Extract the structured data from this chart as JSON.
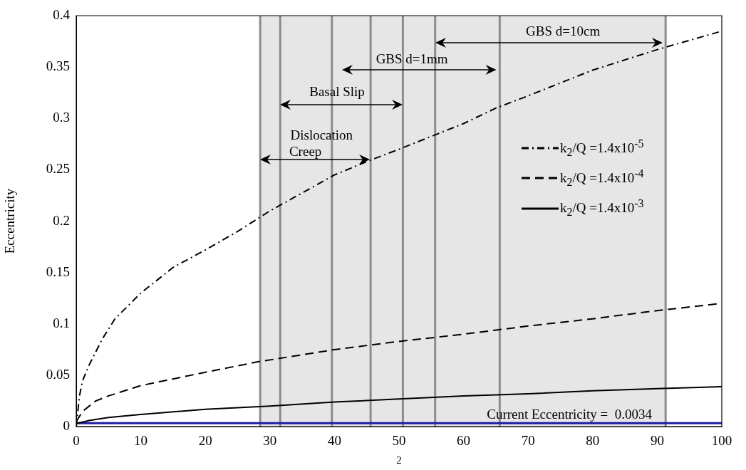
{
  "chart_data": {
    "type": "line",
    "xlabel": "2",
    "ylabel": "Eccentricity",
    "xlim": [
      0,
      100
    ],
    "xticks": [
      0,
      10,
      20,
      30,
      40,
      50,
      60,
      70,
      80,
      90,
      100
    ],
    "ylim": [
      0,
      0.4
    ],
    "yticks": [
      0,
      0.05,
      0.1,
      0.15,
      0.2,
      0.25,
      0.3,
      0.35,
      0.4
    ],
    "grid": false,
    "legend": "right",
    "marker": "none",
    "series": [
      {
        "name": "k$_{2}$/Q =1.4x10$^{-5}$",
        "color": "#000000",
        "line_style": "dashdot",
        "x": [
          0,
          0.5,
          1,
          2,
          4,
          6,
          10,
          15,
          20,
          25,
          30,
          40,
          45,
          50,
          60,
          65,
          70,
          80,
          90,
          100
        ],
        "values": [
          0,
          0.03,
          0.045,
          0.06,
          0.085,
          0.105,
          0.13,
          0.155,
          0.172,
          0.19,
          0.21,
          0.245,
          0.258,
          0.27,
          0.295,
          0.31,
          0.322,
          0.347,
          0.367,
          0.385
        ]
      },
      {
        "name": "k$_{2}$/Q =1.4x10$^{-4}$",
        "color": "#000000",
        "line_style": "dashed",
        "x": [
          0,
          1,
          3,
          5,
          10,
          20,
          28,
          40,
          50,
          60,
          70,
          80,
          90,
          100
        ],
        "values": [
          0.005,
          0.015,
          0.025,
          0.03,
          0.04,
          0.053,
          0.063,
          0.075,
          0.083,
          0.09,
          0.098,
          0.105,
          0.113,
          0.12
        ]
      },
      {
        "name": "k$_{2}$/Q =1.4x10$^{-3}$",
        "color": "#000000",
        "line_style": "solid",
        "x": [
          0,
          2,
          5,
          10,
          20,
          30,
          40,
          50,
          60,
          70,
          80,
          90,
          100
        ],
        "values": [
          0.003,
          0.006,
          0.009,
          0.012,
          0.017,
          0.02,
          0.024,
          0.027,
          0.03,
          0.032,
          0.035,
          0.037,
          0.039
        ]
      }
    ],
    "bands": [
      {
        "axis": "x",
        "from": 28.5,
        "to": 91.3,
        "color": "#e6e6e6"
      }
    ],
    "ref_lines": [
      {
        "axis": "x",
        "value": 28.5,
        "color": "#8c8c8c"
      },
      {
        "axis": "x",
        "value": 31.6,
        "color": "#8c8c8c"
      },
      {
        "axis": "x",
        "value": 39.6,
        "color": "#8c8c8c"
      },
      {
        "axis": "x",
        "value": 45.6,
        "color": "#8c8c8c"
      },
      {
        "axis": "x",
        "value": 50.6,
        "color": "#8c8c8c"
      },
      {
        "axis": "x",
        "value": 55.6,
        "color": "#8c8c8c"
      },
      {
        "axis": "x",
        "value": 65.6,
        "color": "#8c8c8c"
      },
      {
        "axis": "x",
        "value": 91.3,
        "color": "#8c8c8c"
      },
      {
        "axis": "y",
        "value": 0.0034,
        "color": "#1c1ca8",
        "label": "Current Eccentricity =  0.0034"
      }
    ],
    "annotations": [
      "GBS d=10cm",
      "GBS d=1mm",
      "Basal Slip",
      "Dislocation",
      "Creep"
    ]
  }
}
